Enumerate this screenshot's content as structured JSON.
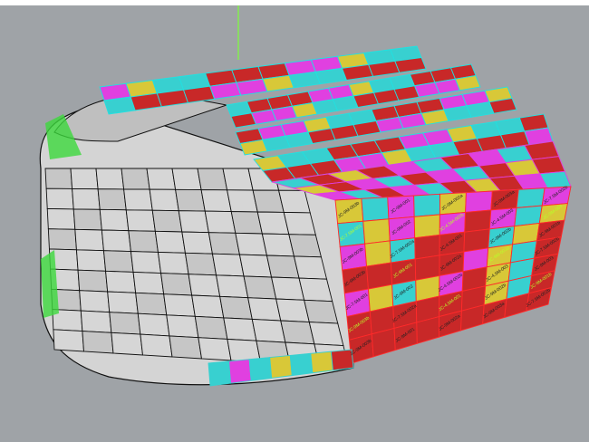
{
  "viewport": {
    "background": "#9fa3a7",
    "model_colors": {
      "shell": "#d4d4d4",
      "magenta": "#e040e0",
      "cyan": "#38d0d0",
      "red": "#c82828",
      "yellow": "#d8c838",
      "green_edge": "#3cd83c",
      "highlight": "#b8ff2a"
    },
    "panel_labels": [
      "JC-9M-003b",
      "JC-9M-001",
      "JC-9M-002a",
      "JC-9M-003a",
      "JC-7.5M-002b",
      "JC-7.5M-001",
      "JC-9M-002",
      "JC-4.5M-002b",
      "JC-4.5M-003",
      "JC-9M-003",
      "JC-9M-003b",
      "JC-7.5M-002a",
      "JC-4.5M-001",
      "JC-9M-002b",
      "JC-9M-001b"
    ]
  }
}
